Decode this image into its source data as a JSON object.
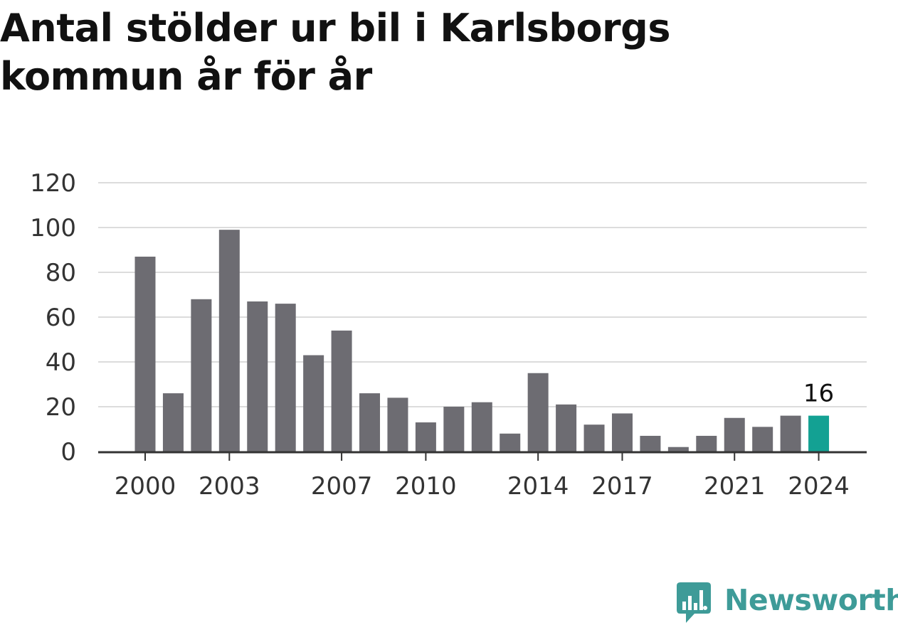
{
  "title": "Antal stölder ur bil i Karlsborgs kommun år för år",
  "brand": {
    "name": "Newsworthy",
    "color": "#3e9b98"
  },
  "colors": {
    "bar": "#6d6c72",
    "highlight": "#13a193",
    "grid": "#dcdcdc",
    "axis": "#333333"
  },
  "chart_data": {
    "type": "bar",
    "categories": [
      "2000",
      "2001",
      "2002",
      "2003",
      "2004",
      "2005",
      "2006",
      "2007",
      "2008",
      "2009",
      "2010",
      "2011",
      "2012",
      "2013",
      "2014",
      "2015",
      "2016",
      "2017",
      "2018",
      "2019",
      "2020",
      "2021",
      "2022",
      "2023",
      "2024"
    ],
    "values": [
      87,
      26,
      68,
      99,
      67,
      66,
      43,
      54,
      26,
      24,
      13,
      20,
      22,
      8,
      35,
      21,
      12,
      17,
      7,
      2,
      7,
      15,
      11,
      16,
      16
    ],
    "highlight_index": 24,
    "ylim": [
      0,
      120
    ],
    "yticks": [
      0,
      20,
      40,
      60,
      80,
      100,
      120
    ],
    "xtick_labels": [
      "2000",
      "2003",
      "2007",
      "2010",
      "2014",
      "2017",
      "2021",
      "2024"
    ],
    "data_label": "16",
    "grid": true
  }
}
